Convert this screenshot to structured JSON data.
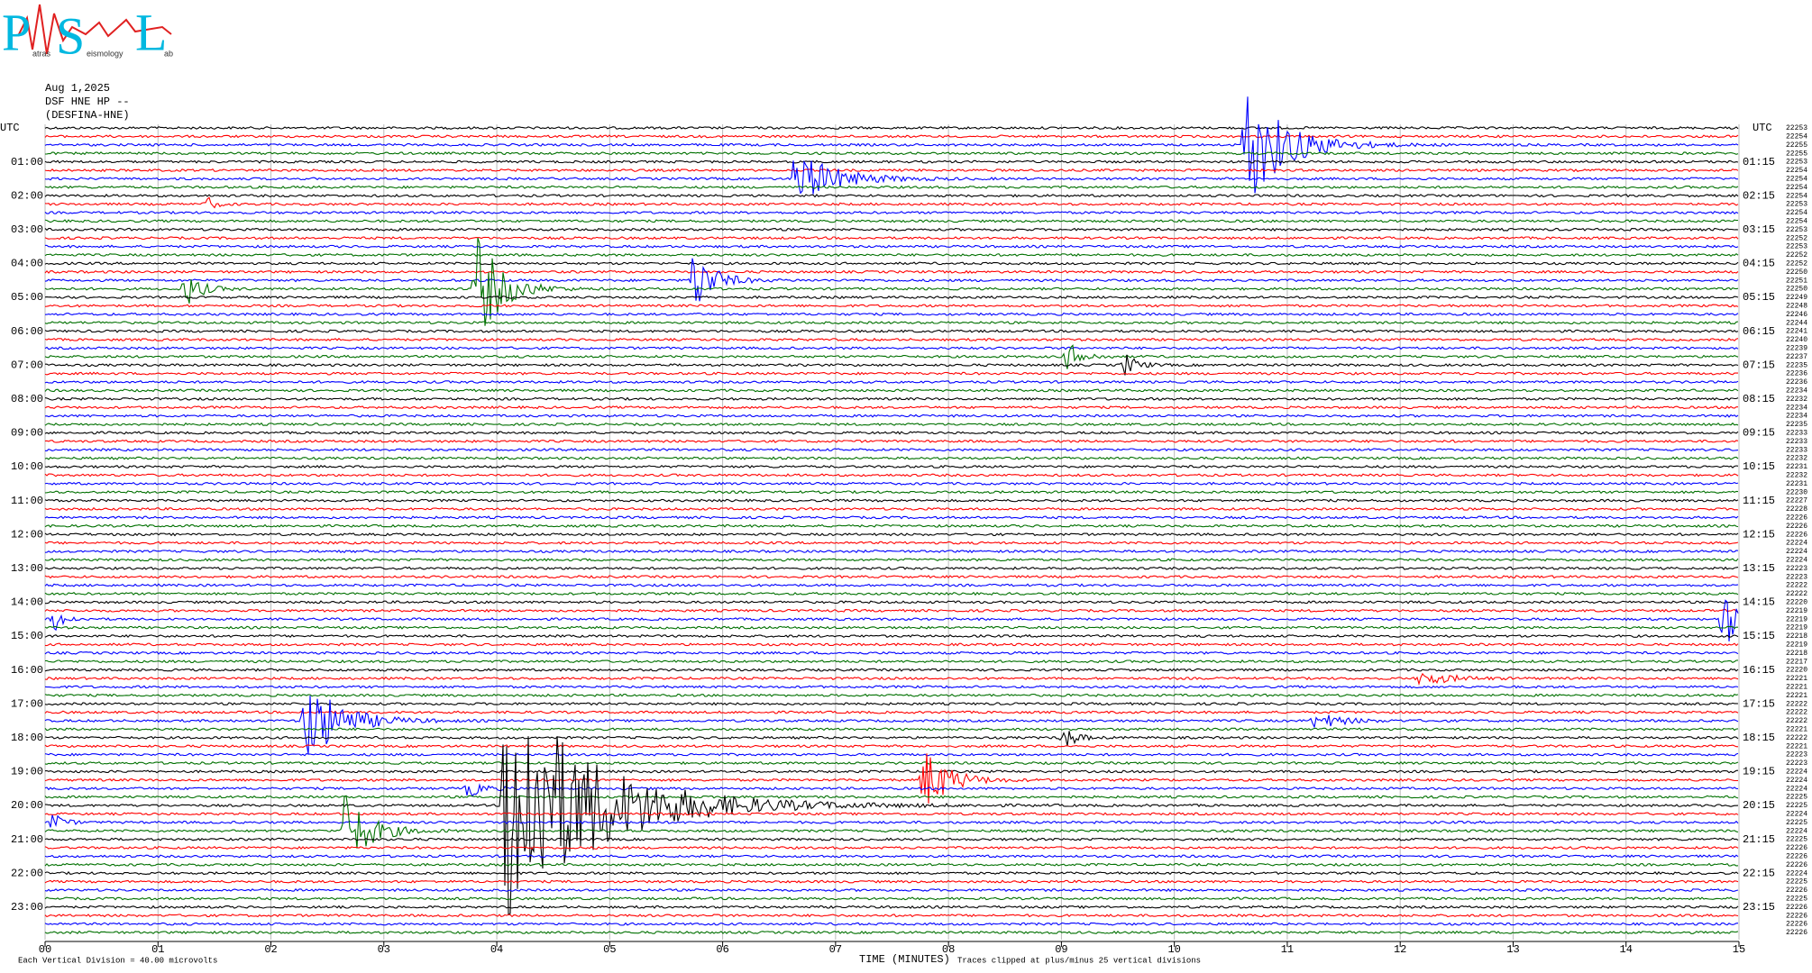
{
  "logo": {
    "letters": [
      "P",
      "S",
      "L"
    ],
    "words": [
      "atras",
      "eismology",
      "ab"
    ]
  },
  "header": {
    "date": "Aug 1,2025",
    "channel": "DSF HNE HP --",
    "station": "(DESFINA-HNE)"
  },
  "left_axis": {
    "title": "UTC",
    "labels": [
      "01:00",
      "02:00",
      "03:00",
      "04:00",
      "05:00",
      "06:00",
      "07:00",
      "08:00",
      "09:00",
      "10:00",
      "11:00",
      "12:00",
      "13:00",
      "14:00",
      "15:00",
      "16:00",
      "17:00",
      "18:00",
      "19:00",
      "20:00",
      "21:00",
      "22:00",
      "23:00"
    ]
  },
  "right_axis": {
    "title": "UTC",
    "labels": [
      "01:15",
      "02:15",
      "03:15",
      "04:15",
      "05:15",
      "06:15",
      "07:15",
      "08:15",
      "09:15",
      "10:15",
      "11:15",
      "12:15",
      "13:15",
      "14:15",
      "15:15",
      "16:15",
      "17:15",
      "18:15",
      "19:15",
      "20:15",
      "21:15",
      "22:15",
      "23:15"
    ]
  },
  "trace_counts": [
    22253,
    22254,
    22255,
    22255,
    22253,
    22254,
    22254,
    22254,
    22254,
    22253,
    22254,
    22254,
    22253,
    22252,
    22253,
    22252,
    22252,
    22250,
    22251,
    22250,
    22249,
    22248,
    22246,
    22244,
    22241,
    22240,
    22239,
    22237,
    22235,
    22236,
    22236,
    22234,
    22232,
    22234,
    22234,
    22235,
    22233,
    22233,
    22233,
    22232,
    22231,
    22232,
    22231,
    22230,
    22227,
    22228,
    22226,
    22226,
    22226,
    22224,
    22224,
    22224,
    22223,
    22223,
    22222,
    22222,
    22220,
    22219,
    22219,
    22219,
    22218,
    22219,
    22218,
    22217,
    22220,
    22221,
    22221,
    22221,
    22222,
    22222,
    22222,
    22221,
    22222,
    22221,
    22223,
    22223,
    22224,
    22224,
    22224,
    22225,
    22225,
    22224,
    22225,
    22224,
    22225,
    22226,
    22226,
    22226,
    22224,
    22225,
    22226,
    22225,
    22226,
    22226,
    22226,
    22226
  ],
  "trace_colors": [
    "#000000",
    "#ff0000",
    "#0000ff",
    "#007000"
  ],
  "x_axis": {
    "title": "TIME (MINUTES)",
    "ticks": [
      "00",
      "01",
      "02",
      "03",
      "04",
      "05",
      "06",
      "07",
      "08",
      "09",
      "10",
      "11",
      "12",
      "13",
      "14",
      "15"
    ]
  },
  "footer": {
    "scale": "Each Vertical Division =   40.00 microvolts",
    "clip": "Traces clipped at plus/minus 25 vertical divisions"
  }
}
